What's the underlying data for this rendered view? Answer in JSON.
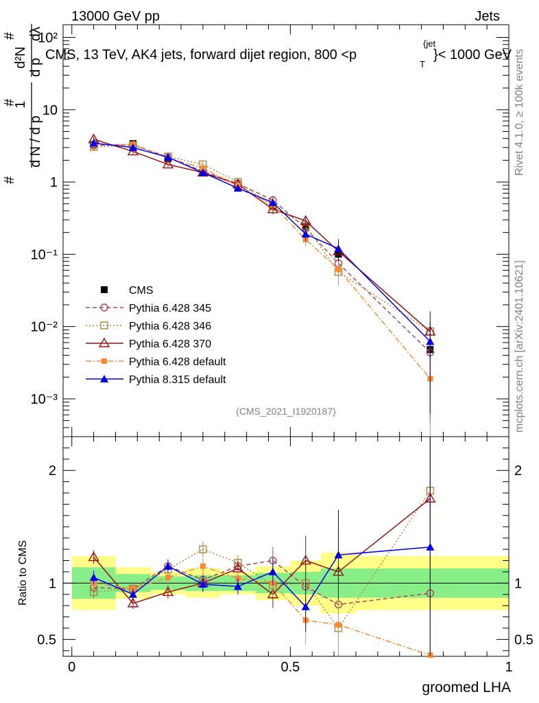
{
  "header": {
    "left": "13000 GeV pp",
    "right": "Jets",
    "plot_title_main": "CMS, 13 TeV, AK4 jets, forward dijet region, 800 <",
    "plot_title_p": "p",
    "plot_title_sup": "{jet",
    "plot_title_sub": "T",
    "plot_title_end": "}< 1000 GeV"
  },
  "side": {
    "rivet": "Rivet 4.1.0, ≥ 100k events",
    "mcplots": "mcplots.cern.ch [arXiv:2401.10621]"
  },
  "watermark": "(CMS_2021_I1920187)",
  "chart_data": [
    {
      "panel": "main",
      "type": "line",
      "yscale": "log",
      "ylim": [
        0.0003,
        150
      ],
      "xlim": [
        -0.02,
        1.0
      ],
      "ylabel": "1/N dN/dp_T dλ",
      "y_tick_labels": [
        "10⁻³",
        "10⁻²",
        "10⁻¹",
        "1",
        "10",
        "10²"
      ],
      "x": [
        0.05,
        0.14,
        0.22,
        0.3,
        0.38,
        0.46,
        0.535,
        0.61,
        0.82
      ],
      "series": [
        {
          "name": "CMS",
          "color": "#000000",
          "style": "none",
          "marker": "square-filled",
          "values": [
            3.3,
            3.4,
            2.1,
            1.35,
            0.85,
            0.47,
            0.24,
            0.1,
            0.0048
          ]
        },
        {
          "name": "Pythia 6.428 345",
          "color": "#aa4455",
          "style": "dashed",
          "marker": "circle-open",
          "values": [
            3.2,
            3.3,
            2.2,
            1.4,
            0.95,
            0.56,
            0.23,
            0.075,
            0.0044
          ]
        },
        {
          "name": "Pythia 6.428 346",
          "color": "#aa8844",
          "style": "dotted",
          "marker": "square-open",
          "values": [
            3.05,
            3.2,
            2.25,
            1.75,
            1.0,
            0.46,
            0.25,
            0.057,
            0.0086
          ]
        },
        {
          "name": "Pythia 6.428 370",
          "color": "#991111",
          "style": "solid",
          "marker": "triangle-open",
          "values": [
            3.9,
            2.65,
            1.75,
            1.35,
            0.93,
            0.42,
            0.29,
            0.11,
            0.0085
          ]
        },
        {
          "name": "Pythia 6.428 default",
          "color": "#ff8833",
          "style": "dashdot",
          "marker": "square-filled-small",
          "values": [
            3.3,
            3.3,
            2.15,
            1.55,
            0.88,
            0.48,
            0.16,
            0.062,
            0.0019
          ]
        },
        {
          "name": "Pythia 8.315 default",
          "color": "#0000ee",
          "style": "solid",
          "marker": "triangle-filled",
          "values": [
            3.45,
            3.0,
            2.2,
            1.35,
            0.82,
            0.52,
            0.19,
            0.12,
            0.0062
          ]
        }
      ]
    },
    {
      "panel": "ratio",
      "type": "line",
      "ylabel": "Ratio to CMS",
      "xlabel": "groomed LHA",
      "ylim": [
        0.35,
        2.3
      ],
      "x_tick_labels": [
        "0",
        "0.5",
        "1"
      ],
      "y_tick_labels": [
        "0.5",
        "1",
        "2"
      ],
      "x": [
        0.05,
        0.14,
        0.22,
        0.3,
        0.38,
        0.46,
        0.535,
        0.61,
        0.82
      ],
      "bin_edges": [
        0.0,
        0.1,
        0.18,
        0.26,
        0.34,
        0.42,
        0.5,
        0.57,
        0.65,
        1.0
      ],
      "band_outer": [
        0.24,
        0.14,
        0.1,
        0.13,
        0.1,
        0.15,
        0.2,
        0.27,
        0.24
      ],
      "band_inner": [
        0.14,
        0.08,
        0.06,
        0.07,
        0.07,
        0.09,
        0.1,
        0.13,
        0.13
      ],
      "series": [
        {
          "name": "Pythia 6.428 345",
          "values": [
            0.96,
            0.95,
            1.15,
            1.03,
            1.15,
            1.2,
            0.97,
            0.81,
            0.91
          ]
        },
        {
          "name": "Pythia 6.428 346",
          "values": [
            0.92,
            0.95,
            1.12,
            1.3,
            1.18,
            0.98,
            1.0,
            0.6,
            1.82
          ]
        },
        {
          "name": "Pythia 6.428 370",
          "values": [
            1.23,
            0.82,
            0.92,
            1.0,
            1.13,
            0.9,
            1.2,
            1.1,
            1.75
          ]
        },
        {
          "name": "Pythia 6.428 default",
          "values": [
            1.0,
            0.95,
            1.05,
            1.15,
            1.04,
            1.0,
            0.67,
            0.63,
            0.36
          ]
        },
        {
          "name": "Pythia 8.315 default",
          "values": [
            1.05,
            0.9,
            1.15,
            0.99,
            0.97,
            1.1,
            0.79,
            1.25,
            1.32
          ]
        }
      ]
    }
  ]
}
